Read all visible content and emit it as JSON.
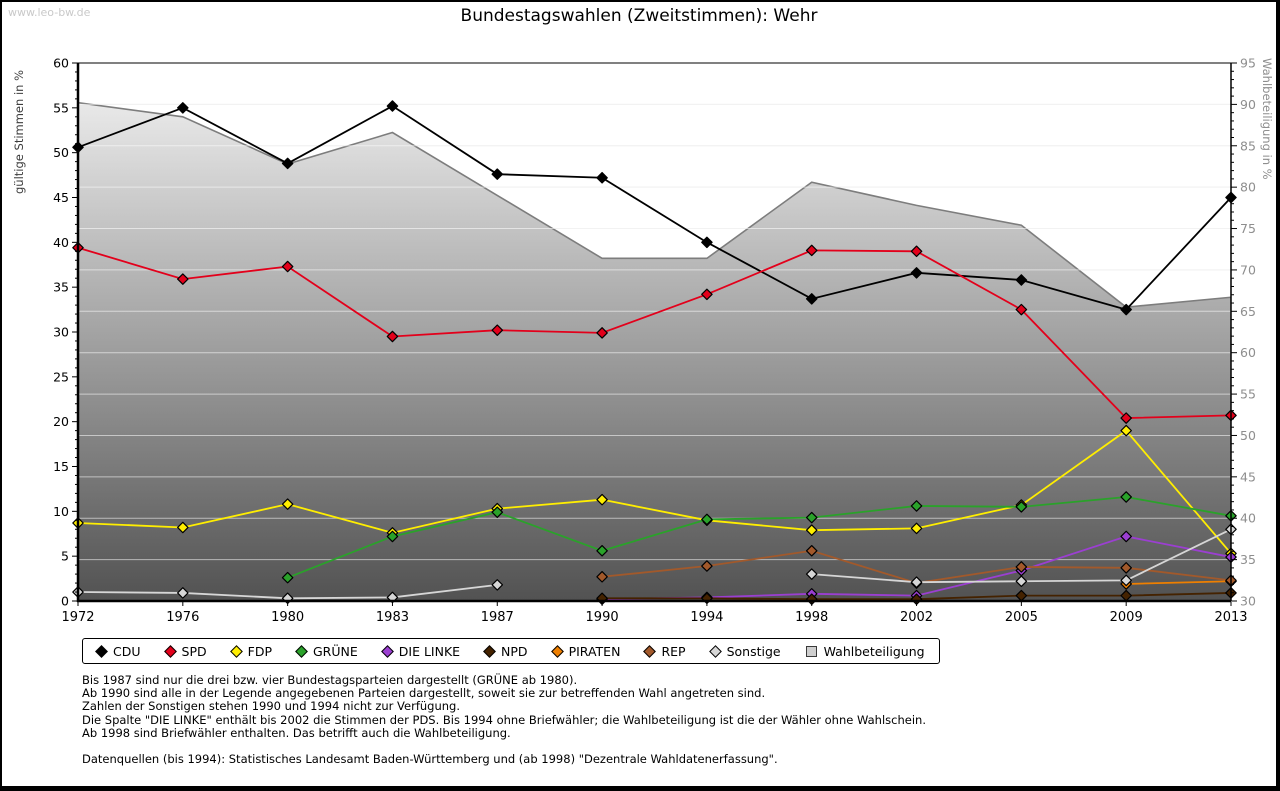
{
  "page": {
    "watermark": "www.leo-bw.de",
    "title": "Bundestagswahlen (Zweitstimmen): Wehr"
  },
  "chart_data": {
    "type": "line",
    "title": "Bundestagswahlen (Zweitstimmen): Wehr",
    "x": [
      1972,
      1976,
      1980,
      1983,
      1987,
      1990,
      1994,
      1998,
      2002,
      2005,
      2009,
      2013
    ],
    "left_axis": {
      "label": "gültige Stimmen in %",
      "min": 0,
      "max": 60,
      "tick_step": 5,
      "minor_step": 1
    },
    "right_axis": {
      "label": "Wahlbeteiligung in %",
      "min": 30,
      "max": 95,
      "tick_step": 5,
      "minor_step": 1
    },
    "grid": true,
    "legend_position": "bottom",
    "series": [
      {
        "name": "CDU",
        "color": "#000000",
        "marker": "diamond",
        "axis": "left",
        "values": [
          50.6,
          55.0,
          48.8,
          55.2,
          47.6,
          47.2,
          40.0,
          33.7,
          36.6,
          35.8,
          32.5,
          45.0
        ]
      },
      {
        "name": "SPD",
        "color": "#e3001b",
        "marker": "diamond",
        "axis": "left",
        "values": [
          39.4,
          35.9,
          37.3,
          29.5,
          30.2,
          29.9,
          34.2,
          39.1,
          39.0,
          32.5,
          20.4,
          20.7
        ]
      },
      {
        "name": "FDP",
        "color": "#ffee00",
        "marker": "diamond",
        "axis": "left",
        "values": [
          8.7,
          8.2,
          10.8,
          7.6,
          10.3,
          11.3,
          9.0,
          7.9,
          8.1,
          10.7,
          19.0,
          5.3
        ]
      },
      {
        "name": "GRÜNE",
        "color": "#2aa22a",
        "marker": "diamond",
        "axis": "left",
        "values": [
          null,
          null,
          2.6,
          7.2,
          9.9,
          5.6,
          9.1,
          9.3,
          10.6,
          10.5,
          11.6,
          9.5
        ]
      },
      {
        "name": "DIE LINKE",
        "color": "#9b3fd1",
        "marker": "diamond",
        "axis": "left",
        "values": [
          null,
          null,
          null,
          null,
          null,
          0.2,
          0.4,
          0.8,
          0.6,
          3.4,
          7.2,
          4.9
        ]
      },
      {
        "name": "NPD",
        "color": "#442200",
        "marker": "diamond",
        "axis": "left",
        "values": [
          null,
          null,
          null,
          null,
          null,
          0.3,
          0.3,
          0.2,
          0.2,
          0.6,
          0.6,
          0.9
        ]
      },
      {
        "name": "PIRATEN",
        "color": "#ee7f00",
        "marker": "diamond",
        "axis": "left",
        "values": [
          null,
          null,
          null,
          null,
          null,
          null,
          null,
          null,
          null,
          null,
          1.9,
          2.2
        ]
      },
      {
        "name": "REP",
        "color": "#a2592b",
        "marker": "diamond",
        "axis": "left",
        "values": [
          null,
          null,
          null,
          null,
          null,
          2.7,
          3.9,
          5.6,
          2.0,
          3.8,
          3.7,
          2.3
        ]
      },
      {
        "name": "Sonstige",
        "color": "#d6d6d6",
        "marker": "diamond",
        "axis": "left",
        "values": [
          1.0,
          0.9,
          0.3,
          0.4,
          1.8,
          null,
          null,
          3.0,
          2.1,
          2.2,
          2.3,
          8.0
        ]
      },
      {
        "name": "Wahlbeteiligung",
        "color": "#cfcfcf",
        "marker": "square",
        "axis": "right",
        "style": "area",
        "values": [
          90.2,
          88.5,
          82.8,
          86.6,
          79.0,
          71.4,
          71.4,
          80.6,
          77.8,
          75.4,
          65.5,
          66.7
        ]
      }
    ]
  },
  "footnotes": {
    "lines": [
      "Bis 1987 sind nur die drei bzw. vier Bundestagsparteien dargestellt (GRÜNE ab 1980).",
      "Ab 1990 sind alle in der Legende angegebenen Parteien dargestellt, soweit sie zur betreffenden Wahl angetreten sind.",
      "Zahlen der Sonstigen stehen 1990 und 1994 nicht zur Verfügung.",
      "Die Spalte \"DIE LINKE\" enthält bis 2002 die Stimmen der PDS. Bis 1994 ohne Briefwähler; die Wahlbeteiligung ist die der Wähler ohne Wahlschein.",
      "Ab 1998 sind Briefwähler enthalten. Das betrifft auch die Wahlbeteiligung."
    ],
    "source": "Datenquellen (bis 1994): Statistisches Landesamt Baden-Württemberg und (ab 1998) \"Dezentrale Wahldatenerfassung\"."
  },
  "colors": {
    "area_gradient_top": "#f5f5f5",
    "area_gradient_bottom": "#525252",
    "area_border": "#7d7d7d",
    "grid_under": "#e2e2e2",
    "grid_over": "rgba(255,255,255,0.55)",
    "axis": "#000000",
    "right_tick_text": "#8e8e8e"
  }
}
